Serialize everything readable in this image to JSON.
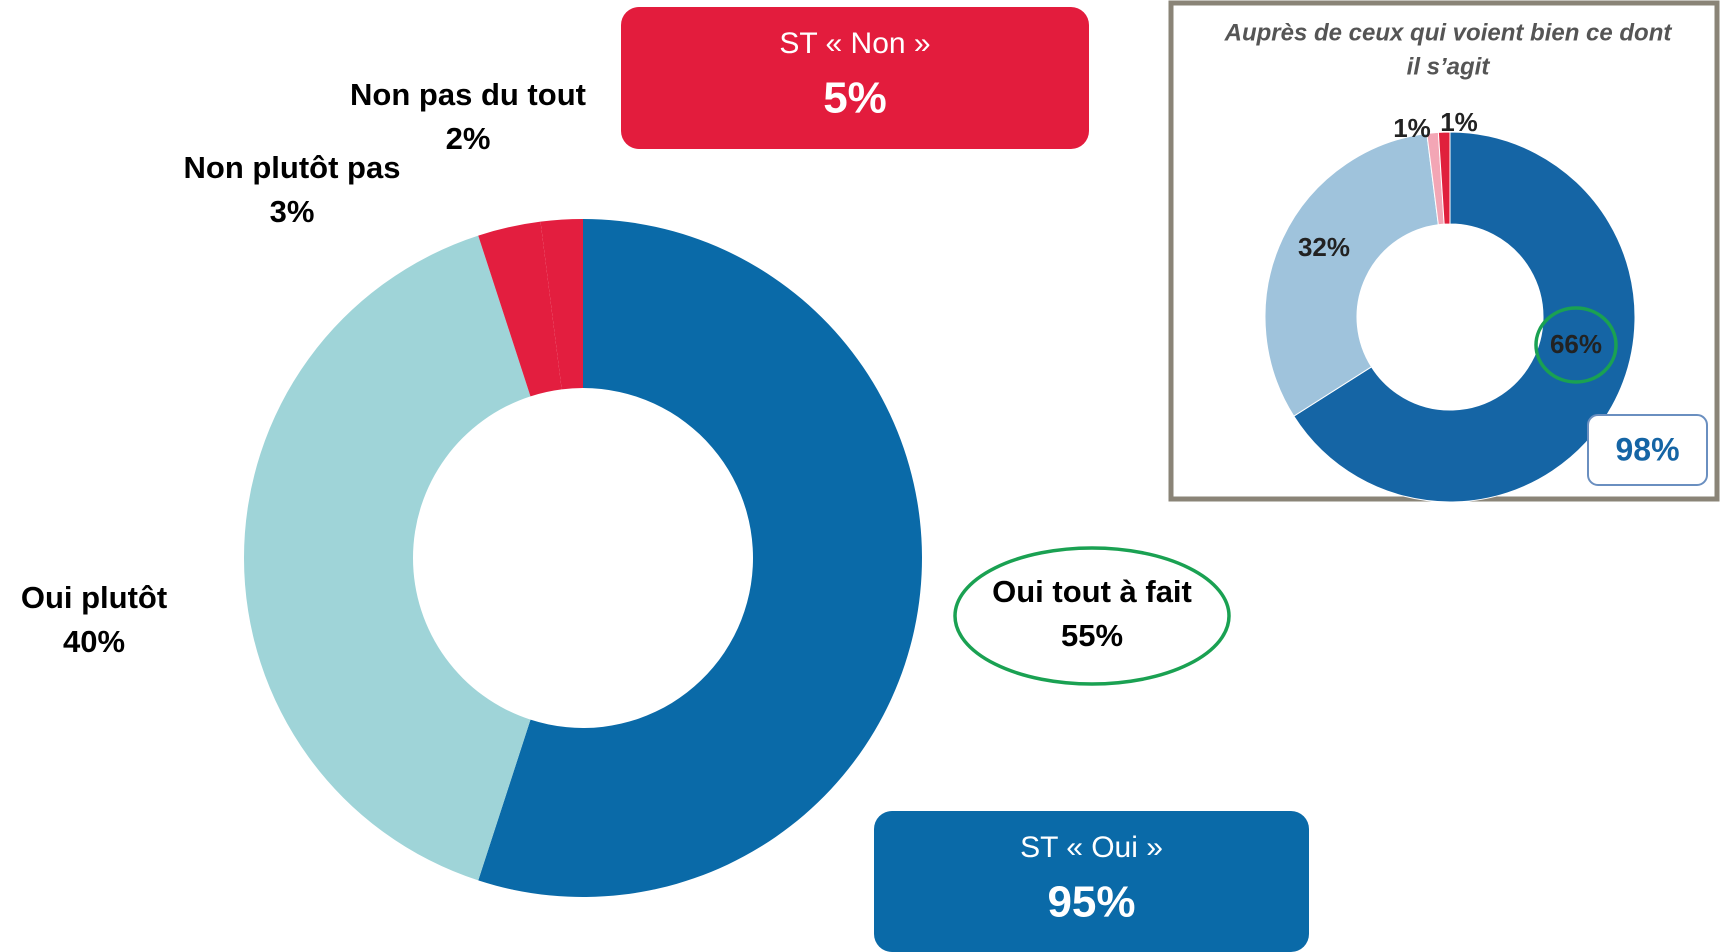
{
  "chart_data": [
    {
      "type": "donut",
      "categories": [
        "Oui tout à fait",
        "Oui plutôt",
        "Non plutôt pas",
        "Non pas du tout"
      ],
      "values": [
        55,
        40,
        3,
        2
      ],
      "value_labels": [
        "55%",
        "40%",
        "3%",
        "2%"
      ],
      "colors": [
        "#0a6aa8",
        "#9fd4d8",
        "#e31e3f",
        "#e31e3f"
      ],
      "annotations": [
        {
          "text": "ST « Non »",
          "value": 5,
          "label": "5%",
          "color": "#e31c3d"
        },
        {
          "text": "ST « Oui »",
          "value": 95,
          "label": "95%",
          "color": "#0a6aa8"
        }
      ]
    },
    {
      "type": "donut",
      "title": [
        "Auprès de ceux qui voient bien ce dont",
        "il s’agit"
      ],
      "categories": [
        null,
        null,
        null,
        null
      ],
      "values": [
        66,
        32,
        1,
        1
      ],
      "value_labels": [
        "66%",
        "32%",
        "1%",
        "1%"
      ],
      "colors": [
        "#1565a5",
        "#9fc3dc",
        "#f3a6b5",
        "#e0203c"
      ],
      "annotations": [
        {
          "value": 98,
          "label": "98%"
        }
      ]
    }
  ]
}
